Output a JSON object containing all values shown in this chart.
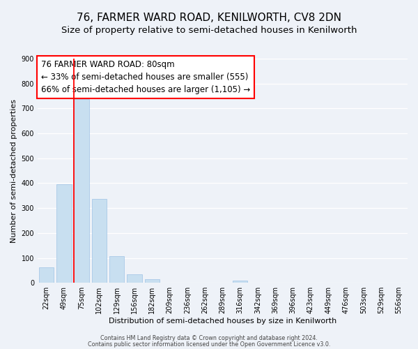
{
  "title": "76, FARMER WARD ROAD, KENILWORTH, CV8 2DN",
  "subtitle": "Size of property relative to semi-detached houses in Kenilworth",
  "xlabel": "Distribution of semi-detached houses by size in Kenilworth",
  "ylabel": "Number of semi-detached properties",
  "bar_labels": [
    "22sqm",
    "49sqm",
    "75sqm",
    "102sqm",
    "129sqm",
    "156sqm",
    "182sqm",
    "209sqm",
    "236sqm",
    "262sqm",
    "289sqm",
    "316sqm",
    "342sqm",
    "369sqm",
    "396sqm",
    "423sqm",
    "449sqm",
    "476sqm",
    "503sqm",
    "529sqm",
    "556sqm"
  ],
  "bar_values": [
    63,
    397,
    738,
    337,
    106,
    34,
    15,
    0,
    0,
    0,
    0,
    8,
    0,
    0,
    0,
    0,
    0,
    0,
    0,
    0,
    0
  ],
  "bar_color": "#c8dff0",
  "bar_edge_color": "#a8c8e8",
  "red_line_bar_index": 2,
  "property_size": "80sqm",
  "pct_smaller": 33,
  "count_smaller": 555,
  "pct_larger": 66,
  "count_larger": 1105,
  "ylim": [
    0,
    900
  ],
  "yticks": [
    0,
    100,
    200,
    300,
    400,
    500,
    600,
    700,
    800,
    900
  ],
  "footer_line1": "Contains HM Land Registry data © Crown copyright and database right 2024.",
  "footer_line2": "Contains public sector information licensed under the Open Government Licence v3.0.",
  "background_color": "#eef2f8",
  "grid_color": "#ffffff",
  "title_fontsize": 11,
  "subtitle_fontsize": 9.5,
  "annotation_fontsize": 8.5,
  "axis_fontsize": 8,
  "tick_fontsize": 7
}
